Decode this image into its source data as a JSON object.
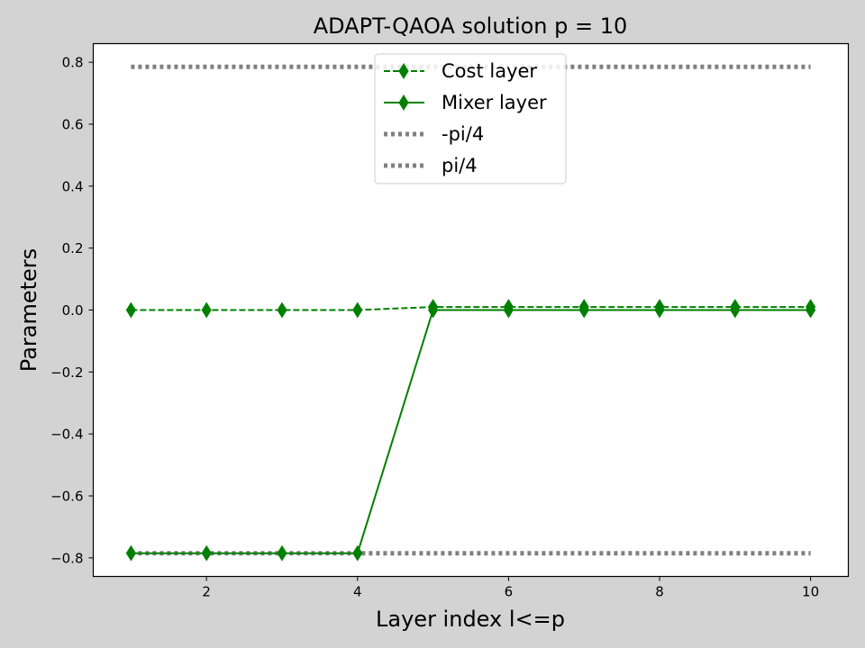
{
  "chart_data": {
    "type": "line",
    "title": "ADAPT-QAOA solution p = 10",
    "xlabel": "Layer index l<=p",
    "ylabel": "Parameters",
    "xlim": [
      0.5,
      10.5
    ],
    "ylim": [
      -0.86,
      0.86
    ],
    "xticks": [
      2,
      4,
      6,
      8,
      10
    ],
    "xtick_labels": [
      "2",
      "4",
      "6",
      "8",
      "10"
    ],
    "yticks": [
      -0.8,
      -0.6,
      -0.4,
      -0.2,
      0.0,
      0.2,
      0.4,
      0.6,
      0.8
    ],
    "ytick_labels": [
      "−0.8",
      "−0.6",
      "−0.4",
      "−0.2",
      "0.0",
      "0.2",
      "0.4",
      "0.6",
      "0.8"
    ],
    "grid": false,
    "legend_position": "top-center",
    "x": [
      1,
      2,
      3,
      4,
      5,
      6,
      7,
      8,
      9,
      10
    ],
    "series": [
      {
        "name": "Cost layer",
        "values": [
          0.0,
          0.0,
          0.0,
          0.0,
          0.01,
          0.01,
          0.01,
          0.01,
          0.01,
          0.01
        ],
        "color": "#008000",
        "linestyle": "dashed",
        "marker": "thin_diamond"
      },
      {
        "name": "Mixer layer",
        "values": [
          -0.785,
          -0.785,
          -0.785,
          -0.785,
          0.0,
          0.0,
          0.0,
          0.0,
          0.0,
          0.0
        ],
        "color": "#008000",
        "linestyle": "solid",
        "marker": "thin_diamond"
      },
      {
        "name": "-pi/4",
        "values": [
          -0.785,
          -0.785,
          -0.785,
          -0.785,
          -0.785,
          -0.785,
          -0.785,
          -0.785,
          -0.785,
          -0.785
        ],
        "color": "#808080",
        "linestyle": "dotted",
        "marker": "none"
      },
      {
        "name": "pi/4",
        "values": [
          0.785,
          0.785,
          0.785,
          0.785,
          0.785,
          0.785,
          0.785,
          0.785,
          0.785,
          0.785
        ],
        "color": "#808080",
        "linestyle": "dotted",
        "marker": "none"
      }
    ]
  }
}
